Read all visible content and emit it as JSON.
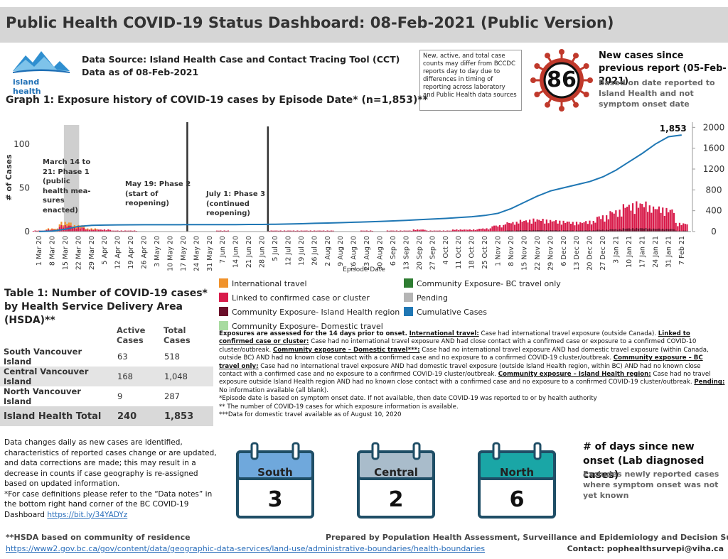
{
  "header": {
    "title": "Public Health COVID-19 Status Dashboard: 08-Feb-2021 (Public Version)"
  },
  "logo": {
    "text": "island health",
    "color": "#1e6fb5"
  },
  "source": {
    "line1": "Data Source: Island Health Case and Contact Tracing Tool (CCT)",
    "line2": "Data as of 08-Feb-2021"
  },
  "note_box": "New, active, and total case counts may differ from BCCDC reports day to day due to differences in timing of reporting across laboratory and Public Health data sources",
  "new_cases": {
    "value": "86",
    "title": "New cases since previous report (05-Feb-2021)",
    "subtitle": "Based on date reported to Island Health and not symptom onset date",
    "virus_color": "#c0392b"
  },
  "graph1": {
    "title": "Graph 1: Exposure history of COVID-19 cases by Episode Date* (n=1,853)**"
  },
  "chart_data": {
    "type": "bar",
    "title": "Graph 1: Exposure history of COVID-19 cases by Episode Date* (n=1,853)**",
    "xlabel": "Episode Date",
    "ylabel": "# of Cases",
    "ylim": [
      0,
      125
    ],
    "y2lim": [
      0,
      2100
    ],
    "yticks": [
      0,
      50,
      100
    ],
    "y2ticks": [
      0,
      400,
      800,
      1200,
      1600,
      2000
    ],
    "x_tick_labels": [
      "1 Mar 20",
      "8 Mar 20",
      "15 Mar 20",
      "22 Mar 20",
      "29 Mar 20",
      "5 Apr 20",
      "12 Apr 20",
      "19 Apr 20",
      "26 Apr 20",
      "3 May 20",
      "10 May 20",
      "17 May 20",
      "24 May 20",
      "31 May 20",
      "7 Jun 20",
      "14 Jun 20",
      "21 Jun 20",
      "28 Jun 20",
      "5 Jul 20",
      "12 Jul 20",
      "19 Jul 20",
      "26 Jul 20",
      "2 Aug 20",
      "9 Aug 20",
      "16 Aug 20",
      "23 Aug 20",
      "30 Aug 20",
      "6 Sep 20",
      "13 Sep 20",
      "20 Sep 20",
      "27 Sep 20",
      "4 Oct 20",
      "11 Oct 20",
      "18 Oct 20",
      "25 Oct 20",
      "1 Nov 20",
      "8 Nov 20",
      "15 Nov 20",
      "22 Nov 20",
      "29 Nov 20",
      "6 Dec 20",
      "13 Dec 20",
      "20 Dec 20",
      "27 Dec 20",
      "3 Jan 21",
      "10 Jan 21",
      "17 Jan 21",
      "24 Jan 21",
      "31 Jan 21",
      "7 Feb 21"
    ],
    "weekly_linked_cases": [
      1,
      2,
      6,
      4,
      2,
      2,
      1,
      1,
      0,
      0,
      0,
      0,
      0,
      0,
      1,
      0,
      0,
      0,
      1,
      1,
      1,
      1,
      1,
      0,
      0,
      1,
      0,
      1,
      1,
      2,
      1,
      1,
      2,
      2,
      3,
      6,
      9,
      11,
      12,
      11,
      10,
      9,
      10,
      15,
      20,
      26,
      28,
      24,
      22,
      8
    ],
    "weekly_international_cases": [
      0,
      1,
      3,
      2,
      1,
      0,
      0,
      0,
      0,
      0,
      0,
      0,
      0,
      0,
      0,
      0,
      0,
      0,
      0,
      0,
      0,
      0,
      0,
      0,
      0,
      0,
      0,
      0,
      0,
      0,
      0,
      0,
      0,
      0,
      0,
      0,
      0,
      0,
      0,
      0,
      0,
      0,
      0,
      0,
      0,
      0,
      0,
      0,
      0,
      0
    ],
    "cumulative_cases": [
      1,
      8,
      45,
      100,
      118,
      124,
      128,
      130,
      131,
      131,
      131,
      132,
      132,
      132,
      133,
      134,
      136,
      137,
      140,
      145,
      150,
      158,
      164,
      170,
      178,
      186,
      195,
      205,
      215,
      228,
      240,
      252,
      268,
      285,
      310,
      350,
      440,
      560,
      680,
      780,
      840,
      900,
      960,
      1050,
      1180,
      1340,
      1500,
      1680,
      1820,
      1853
    ],
    "cumulative_label": "1,853",
    "phase_markers": [
      {
        "label": "March 14 to 21: Phase 1 (public health measures enacted)",
        "start": "14 Mar 20",
        "end": "21 Mar 20"
      },
      {
        "label": "May 19: Phase 2 (start of reopening)",
        "date": "19 May 20"
      },
      {
        "label": "July 1: Phase 3 (continued reopening)",
        "date": "1 Jul 20"
      }
    ],
    "legend": [
      {
        "name": "International travel",
        "color": "#f0922b"
      },
      {
        "name": "Linked to confirmed case or cluster",
        "color": "#d81b4a"
      },
      {
        "name": "Community Exposure- Island Health region",
        "color": "#6b0f2a"
      },
      {
        "name": "Community Exposure- Domestic travel",
        "color": "#a8dba0"
      },
      {
        "name": "Community Exposure- BC travel only",
        "color": "#2e7d32"
      },
      {
        "name": "Pending",
        "color": "#b5b5b5"
      },
      {
        "name": "Cumulative Cases",
        "color": "#1f77b4"
      }
    ]
  },
  "phase_labels": {
    "p1": [
      "March 14 to",
      "21: Phase 1",
      "(public",
      "health mea-",
      "sures",
      "enacted)"
    ],
    "p2": [
      "May 19: Phase 2",
      "(start of",
      "reopening)"
    ],
    "p3": [
      "July 1: Phase 3",
      "(continued",
      "reopening)"
    ]
  },
  "definitions": {
    "intro": "Exposures are assessed for the 14 days prior to onset.",
    "intl_label": "International travel:",
    "intl_text": "Case had international travel exposure (outside Canada).",
    "linked_label": "Linked to confirmed case or cluster:",
    "linked_text": "Case had no international travel exposure AND had close contact with a confirmed case or exposure to a confirmed COVID-10 cluster/outbreak.",
    "dom_label": "Community exposure – Domestic travel***:",
    "dom_text": "Case had no international travel exposure AND had domestic travel exposure (within Canada, outside BC) AND had no known close contact with a confirmed case and no exposure to a confirmed COVID-19 cluster/outbreak.",
    "bc_label": "Community exposure – BC travel only:",
    "bc_text": "Case had no international travel exposure AND had domestic travel exposure (outside Island Health region, within BC) AND had no known close contact with a confirmed case and no exposure to a confirmed COVID-19 cluster/outbreak.",
    "ih_label": "Community exposure – Island Health region:",
    "ih_text": "Case had no travel exposure outside Island Health region AND had no known close contact with a confirmed case and no exposure to a confirmed COVID-19 cluster/outbreak.",
    "pend_label": "Pending:",
    "pend_text": "No information available (all blank).",
    "note1": "*Episode date is based on symptom onset date. If not available, then date COVID-19 was reported to or by health authority",
    "note2": "** The number of COVID-19 cases for which exposure information is available.",
    "note3": "***Data for domestic travel available as of August 10, 2020"
  },
  "table1": {
    "title": "Table 1: Number of COVID-19 cases* by Health Service Delivery Area (HSDA)**",
    "col_active": "Active Cases",
    "col_total": "Total Cases",
    "rows": [
      {
        "name": "South Vancouver Island",
        "active": "63",
        "total": "518"
      },
      {
        "name": "Central Vancouver Island",
        "active": "168",
        "total": "1,048"
      },
      {
        "name": "North Vancouver Island",
        "active": "9",
        "total": "287"
      }
    ],
    "total": {
      "name": "Island Health Total",
      "active": "240",
      "total": "1,853"
    }
  },
  "left_notes": {
    "p1": "Data changes daily as new cases are identified, characteristics of reported cases change or are updated, and data corrections are made; this may result in a decrease in counts if case geography is re-assigned based on updated information.",
    "p2": "*For case definitions please refer to the “Data notes” in the bottom right hand corner of the BC COVID-19 Dashboard",
    "link": "https://bit.ly/34YADYz"
  },
  "days_since": {
    "title": "# of days since new onset (Lab diagnosed cases)",
    "subtitle": "Excludes newly reported cases where symptom onset was not yet known",
    "calendars": [
      {
        "label": "South",
        "value": "3",
        "color": "#6fa8dc"
      },
      {
        "label": "Central",
        "value": "2",
        "color": "#a9bccb"
      },
      {
        "label": "North",
        "value": "6",
        "color": "#1aa6a6"
      }
    ]
  },
  "footer": {
    "hsda_note": "**HSDA based on community of residence",
    "link": "https://www2.gov.bc.ca/gov/content/data/geographic-data-services/land-use/administrative-boundaries/health-boundaries",
    "prepared": "Prepared by Population Health Assessment, Surveillance and Epidemiology and Decision Support",
    "contact": "Contact: pophealthsurvepi@viha.ca"
  }
}
